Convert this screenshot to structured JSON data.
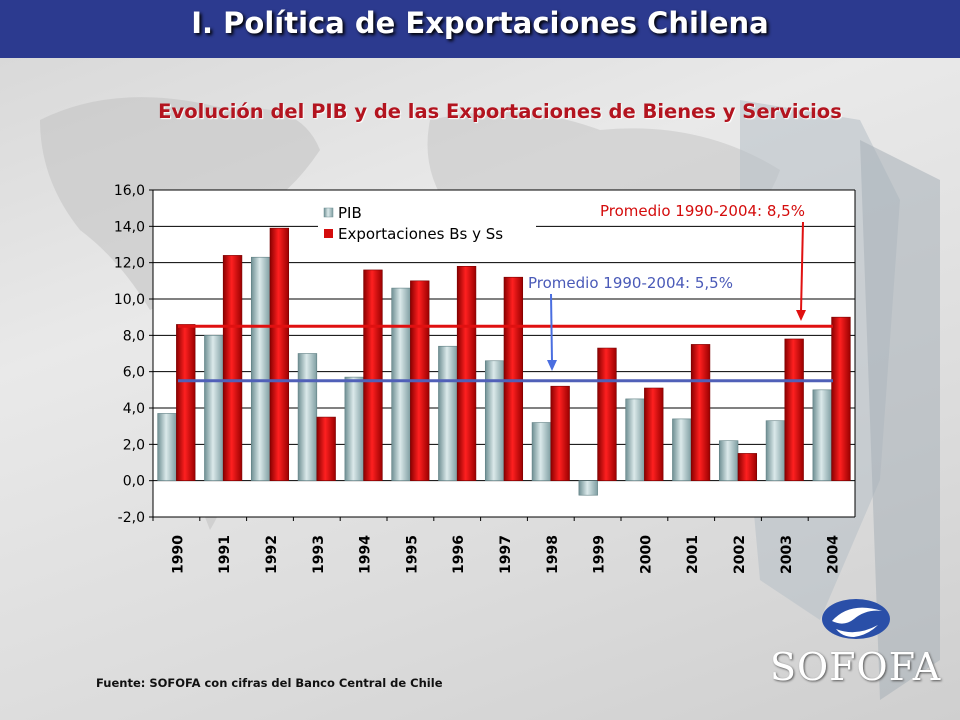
{
  "header": {
    "title": "I. Política de Exportaciones Chilena"
  },
  "subtitle": "Evolución del PIB y de las Exportaciones de Bienes y Servicios",
  "source": "Fuente: SOFOFA con cifras del Banco Central de Chile",
  "logo": {
    "text": "SOFOFA"
  },
  "colors": {
    "title_bar": "#2c3a8f",
    "pib": "#a9c3c6",
    "exports": "#d40c0c",
    "avg_pib": "#5060b8",
    "avg_exports": "#e01010"
  },
  "chart_data": {
    "type": "bar",
    "categories": [
      "1990",
      "1991",
      "1992",
      "1993",
      "1994",
      "1995",
      "1996",
      "1997",
      "1998",
      "1999",
      "2000",
      "2001",
      "2002",
      "2003",
      "2004"
    ],
    "series": [
      {
        "name": "PIB",
        "values": [
          3.7,
          8.0,
          12.3,
          7.0,
          5.7,
          10.6,
          7.4,
          6.6,
          3.2,
          -0.8,
          4.5,
          3.4,
          2.2,
          3.3,
          5.0
        ]
      },
      {
        "name": "Exportaciones Bs y Ss",
        "values": [
          8.6,
          12.4,
          13.9,
          3.5,
          11.6,
          11.0,
          11.8,
          11.2,
          5.2,
          7.3,
          5.1,
          7.5,
          1.5,
          7.8,
          9.0
        ]
      }
    ],
    "ylim": [
      -2.0,
      16.0
    ],
    "yticks": [
      "16,0",
      "14,0",
      "12,0",
      "10,0",
      "8,0",
      "6,0",
      "4,0",
      "2,0",
      "0,0",
      "-2,0"
    ],
    "reference_lines": [
      {
        "label": "Promedio 1990-2004: 8,5%",
        "value": 8.5
      },
      {
        "label": "Promedio 1990-2004: 5,5%",
        "value": 5.5
      }
    ],
    "legend": "top-left",
    "grid": true
  }
}
